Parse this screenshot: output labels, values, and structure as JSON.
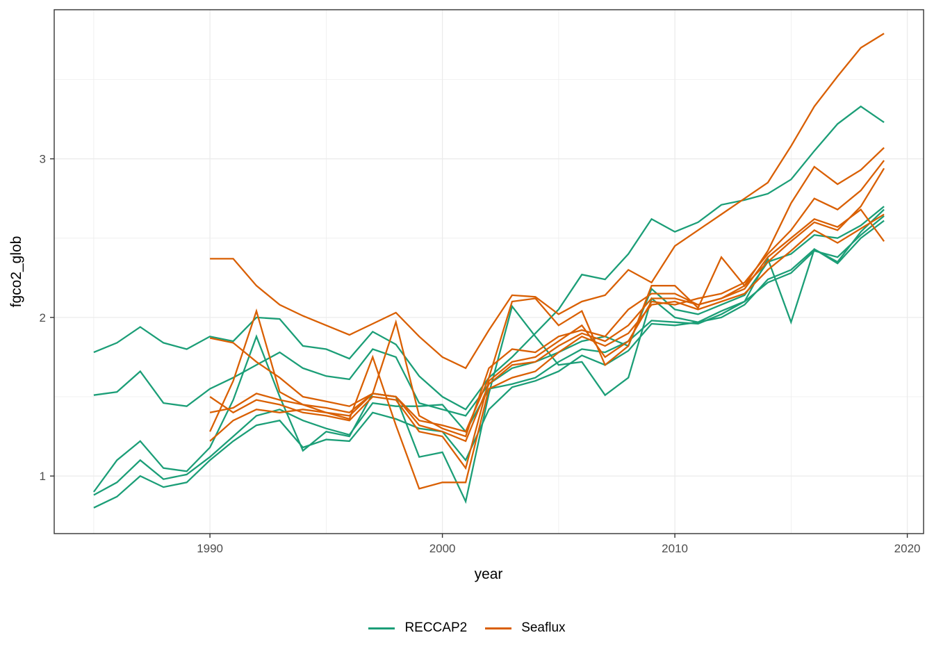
{
  "chart_data": {
    "type": "line",
    "title": "",
    "xlabel": "year",
    "ylabel": "fgco2_glob",
    "xlim": [
      1983.3,
      2020.7
    ],
    "ylim": [
      0.637,
      3.94
    ],
    "x_major_ticks": [
      1990,
      2000,
      2010,
      2020
    ],
    "x_minor_ticks": [
      1985,
      1995,
      2005,
      2015
    ],
    "y_major_ticks": [
      1,
      2,
      3
    ],
    "y_minor_ticks": [
      1.5,
      2.5,
      3.5
    ],
    "grid": true,
    "colors": {
      "RECCAP2": "#1b9e77",
      "Seaflux": "#d95f02",
      "grid": "#ebebeb",
      "panel_border": "#333333",
      "tick_label": "#4d4d4d",
      "axis_title": "#000000"
    },
    "legend": {
      "position": "bottom",
      "entries": [
        {
          "label": "RECCAP2",
          "color": "#1b9e77"
        },
        {
          "label": "Seaflux",
          "color": "#d95f02"
        }
      ]
    },
    "series": [
      {
        "name": "RECCAP2-1",
        "group": "RECCAP2",
        "start_year": 1985,
        "values": [
          1.78,
          1.84,
          1.94,
          1.84,
          1.8,
          1.88,
          1.85,
          2.0,
          1.99,
          1.82,
          1.8,
          1.74,
          1.91,
          1.83,
          1.63,
          1.5,
          1.42,
          1.62,
          1.75,
          1.9,
          2.05,
          2.27,
          2.24,
          2.4,
          2.62,
          2.54,
          2.6,
          2.71,
          2.74,
          2.78,
          2.87,
          3.05,
          3.22,
          3.33,
          3.23
        ]
      },
      {
        "name": "RECCAP2-2",
        "group": "RECCAP2",
        "start_year": 1985,
        "values": [
          1.51,
          1.53,
          1.66,
          1.46,
          1.44,
          1.55,
          1.62,
          1.7,
          1.78,
          1.68,
          1.63,
          1.61,
          1.8,
          1.75,
          1.46,
          1.42,
          1.38,
          1.58,
          1.68,
          1.72,
          1.78,
          1.85,
          1.88,
          1.82,
          2.18,
          2.05,
          2.02,
          2.08,
          2.14,
          2.35,
          2.4,
          2.52,
          2.5,
          2.58,
          2.7
        ]
      },
      {
        "name": "RECCAP2-3",
        "group": "RECCAP2",
        "start_year": 1985,
        "values": [
          0.9,
          1.1,
          1.22,
          1.05,
          1.03,
          1.18,
          1.48,
          1.88,
          1.5,
          1.16,
          1.28,
          1.25,
          1.52,
          1.5,
          1.12,
          1.15,
          0.84,
          1.52,
          2.07,
          1.88,
          1.7,
          1.72,
          1.51,
          1.62,
          2.12,
          2.0,
          1.97,
          2.04,
          2.1,
          2.37,
          1.97,
          2.43,
          2.35,
          2.54,
          2.68
        ]
      },
      {
        "name": "RECCAP2-4",
        "group": "RECCAP2",
        "start_year": 1985,
        "values": [
          0.88,
          0.96,
          1.1,
          0.98,
          1.01,
          1.12,
          1.25,
          1.38,
          1.42,
          1.35,
          1.3,
          1.26,
          1.46,
          1.44,
          1.44,
          1.45,
          1.28,
          1.55,
          1.58,
          1.62,
          1.72,
          1.8,
          1.78,
          1.85,
          1.98,
          1.97,
          1.96,
          2.02,
          2.1,
          2.22,
          2.28,
          2.42,
          2.38,
          2.52,
          2.64
        ]
      },
      {
        "name": "RECCAP2-5",
        "group": "RECCAP2",
        "start_year": 1985,
        "values": [
          0.8,
          0.87,
          1.0,
          0.93,
          0.96,
          1.1,
          1.22,
          1.32,
          1.35,
          1.18,
          1.23,
          1.22,
          1.4,
          1.36,
          1.3,
          1.28,
          1.1,
          1.42,
          1.56,
          1.6,
          1.66,
          1.76,
          1.7,
          1.79,
          1.96,
          1.95,
          1.97,
          2.0,
          2.08,
          2.24,
          2.3,
          2.43,
          2.34,
          2.5,
          2.61
        ]
      },
      {
        "name": "Seaflux-1",
        "group": "Seaflux",
        "start_year": 1990,
        "values": [
          2.37,
          2.37,
          2.2,
          2.08,
          2.01,
          1.95,
          1.89,
          1.96,
          2.03,
          1.88,
          1.75,
          1.68,
          1.92,
          2.14,
          2.13,
          2.02,
          2.1,
          2.14,
          2.3,
          2.22,
          2.45,
          2.55,
          2.65,
          2.75,
          2.85,
          3.08,
          3.33,
          3.52,
          3.7,
          3.79
        ]
      },
      {
        "name": "Seaflux-2",
        "group": "Seaflux",
        "start_year": 1990,
        "values": [
          1.87,
          1.84,
          1.72,
          1.62,
          1.5,
          1.47,
          1.44,
          1.52,
          1.5,
          1.35,
          1.32,
          1.28,
          1.62,
          2.1,
          2.12,
          1.95,
          2.04,
          1.7,
          1.82,
          2.2,
          2.2,
          2.06,
          2.38,
          2.2,
          2.42,
          2.72,
          2.95,
          2.84,
          2.93,
          3.07
        ]
      },
      {
        "name": "Seaflux-3",
        "group": "Seaflux",
        "start_year": 1990,
        "values": [
          1.28,
          1.6,
          2.04,
          1.53,
          1.45,
          1.43,
          1.4,
          1.52,
          1.97,
          1.38,
          1.3,
          1.25,
          1.68,
          1.8,
          1.78,
          1.88,
          1.92,
          1.88,
          2.05,
          2.15,
          2.15,
          2.08,
          2.12,
          2.18,
          2.38,
          2.5,
          2.62,
          2.57,
          2.68,
          2.48
        ]
      },
      {
        "name": "Seaflux-4",
        "group": "Seaflux",
        "start_year": 1990,
        "values": [
          1.4,
          1.43,
          1.52,
          1.48,
          1.45,
          1.4,
          1.36,
          1.75,
          1.32,
          0.92,
          0.96,
          0.96,
          1.55,
          1.62,
          1.66,
          1.78,
          1.88,
          1.82,
          1.9,
          2.08,
          2.1,
          2.05,
          2.1,
          2.15,
          2.3,
          2.42,
          2.55,
          2.47,
          2.56,
          2.65
        ]
      },
      {
        "name": "Seaflux-5",
        "group": "Seaflux",
        "start_year": 1990,
        "values": [
          1.5,
          1.4,
          1.48,
          1.45,
          1.4,
          1.38,
          1.35,
          1.5,
          1.48,
          1.28,
          1.25,
          1.05,
          1.6,
          1.72,
          1.75,
          1.85,
          1.95,
          1.75,
          1.85,
          2.1,
          2.08,
          2.12,
          2.15,
          2.22,
          2.4,
          2.55,
          2.75,
          2.68,
          2.8,
          2.99
        ]
      },
      {
        "name": "Seaflux-6",
        "group": "Seaflux",
        "start_year": 1990,
        "values": [
          1.22,
          1.35,
          1.42,
          1.4,
          1.42,
          1.4,
          1.38,
          1.52,
          1.5,
          1.32,
          1.28,
          1.22,
          1.58,
          1.7,
          1.72,
          1.82,
          1.9,
          1.85,
          1.95,
          2.12,
          2.12,
          2.08,
          2.12,
          2.2,
          2.35,
          2.48,
          2.6,
          2.55,
          2.7,
          2.94
        ]
      }
    ]
  }
}
